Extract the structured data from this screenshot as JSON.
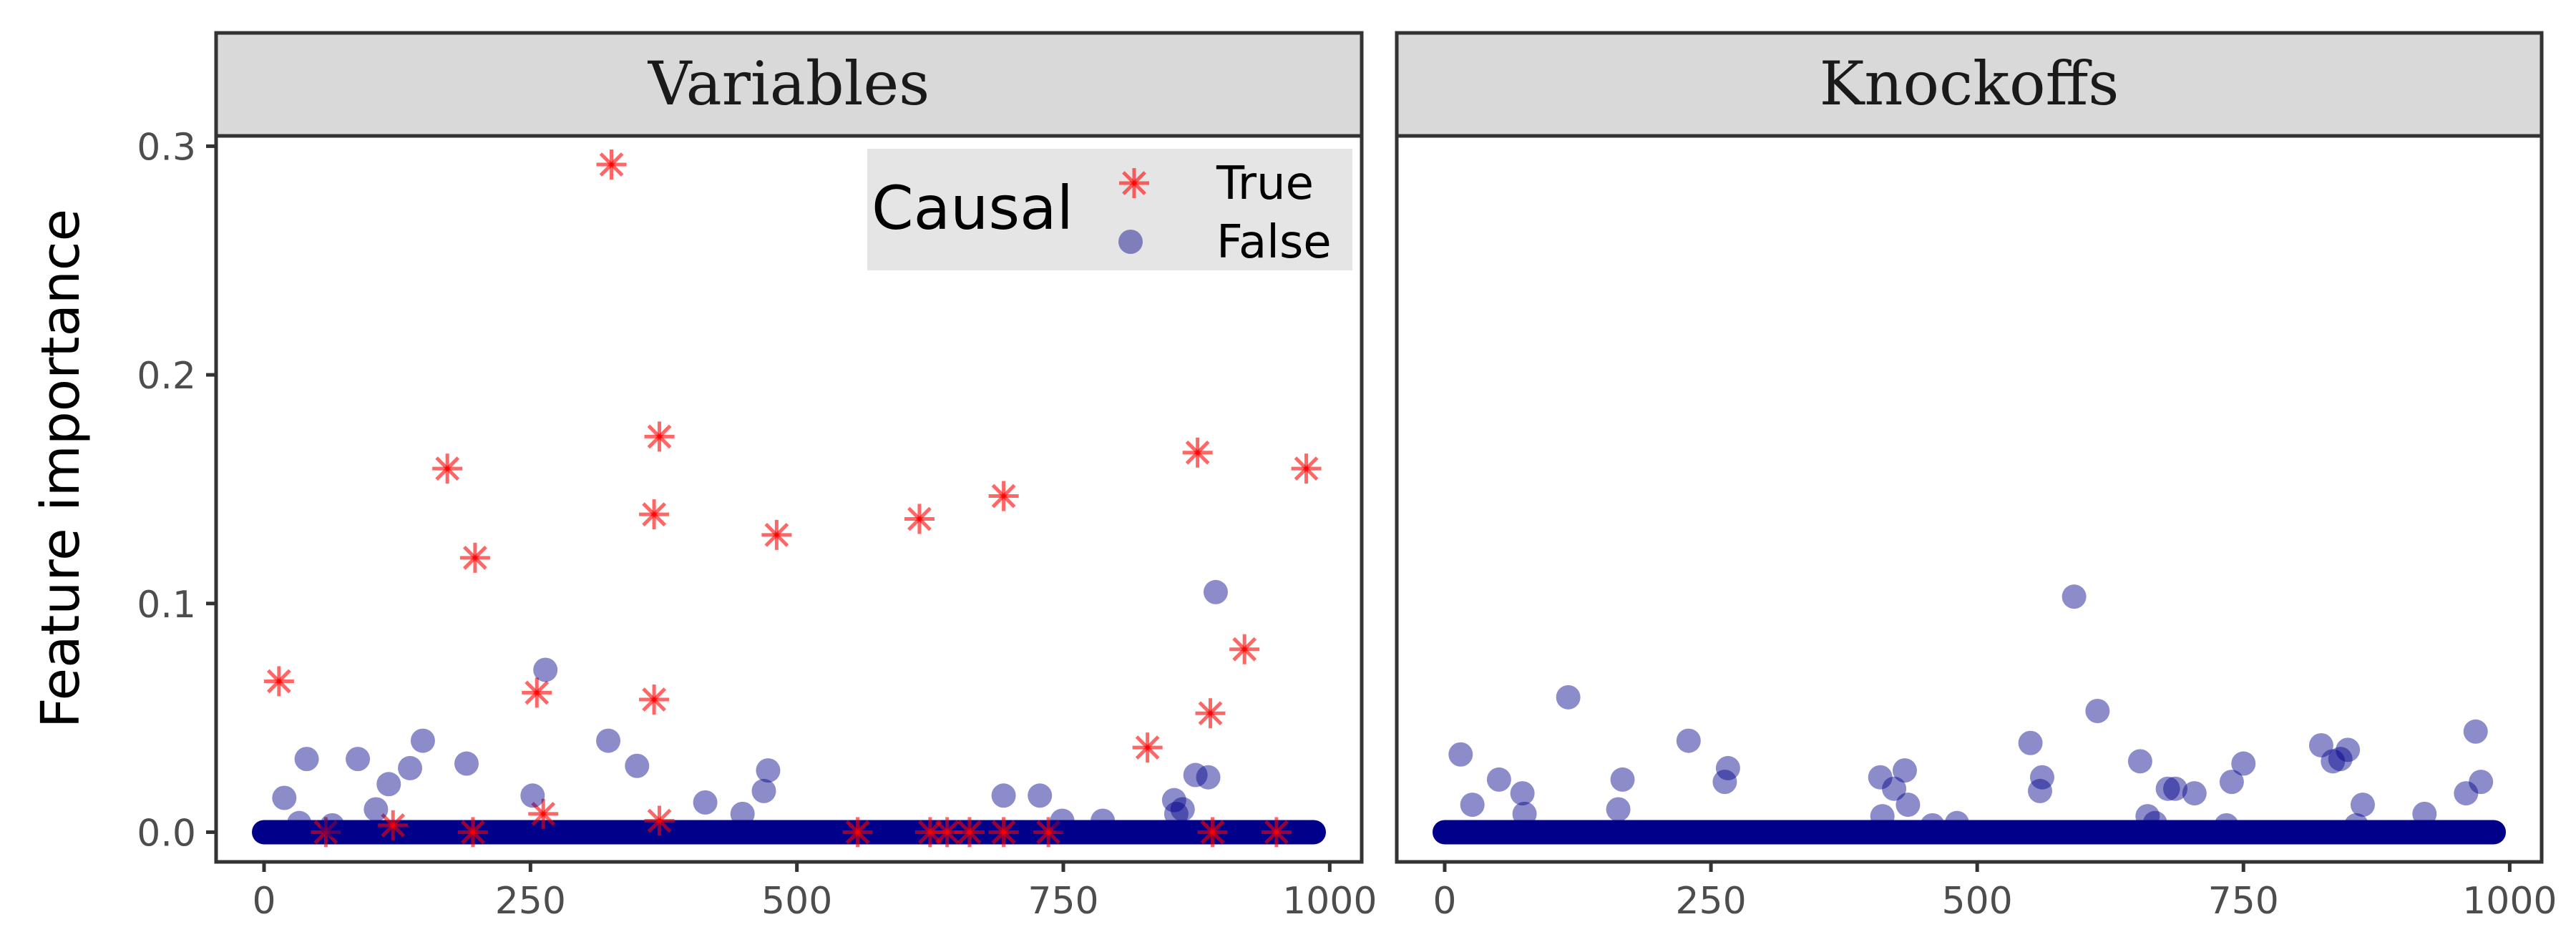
{
  "chart_data": {
    "type": "scatter",
    "ylabel": "Feature importance",
    "xlim": [
      -45,
      1030
    ],
    "ylim": [
      -0.013,
      0.3045
    ],
    "x_ticks": [
      0,
      250,
      500,
      750,
      1000
    ],
    "y_ticks": [
      0.0,
      0.1,
      0.2,
      0.3
    ],
    "x_tick_labels": [
      "0",
      "250",
      "500",
      "750",
      "1000"
    ],
    "y_tick_labels": [
      "0.0",
      "0.1",
      "0.2",
      "0.3"
    ],
    "grid": false,
    "legend": {
      "title": "Causal",
      "placement": "top-right",
      "entries": [
        {
          "label": "True",
          "marker": "asterisk",
          "color": "#ff0000"
        },
        {
          "label": "False",
          "marker": "circle",
          "color": "#00008b"
        }
      ]
    },
    "baseline": {
      "y": 0.0,
      "x_from": 0,
      "x_to": 985,
      "color": "#00008b"
    },
    "panels": [
      {
        "strip_label": "Variables",
        "series": [
          {
            "name": "True",
            "marker": "asterisk",
            "color": "#ff0000",
            "points": [
              [
                14,
                0.066
              ],
              [
                172,
                0.159
              ],
              [
                198,
                0.12
              ],
              [
                256,
                0.061
              ],
              [
                262,
                0.008
              ],
              [
                326,
                0.292
              ],
              [
                366,
                0.139
              ],
              [
                366,
                0.058
              ],
              [
                371,
                0.173
              ],
              [
                371,
                0.005
              ],
              [
                481,
                0.13
              ],
              [
                615,
                0.137
              ],
              [
                694,
                0.147
              ],
              [
                829,
                0.037
              ],
              [
                876,
                0.166
              ],
              [
                888,
                0.052
              ],
              [
                920,
                0.08
              ],
              [
                978,
                0.159
              ],
              [
                58,
                0.0
              ],
              [
                121,
                0.003
              ],
              [
                196,
                0.0
              ],
              [
                557,
                0.0
              ],
              [
                625,
                0.0
              ],
              [
                641,
                0.0
              ],
              [
                662,
                0.0
              ],
              [
                694,
                0.0
              ],
              [
                736,
                0.0
              ],
              [
                890,
                0.0
              ],
              [
                950,
                0.0
              ]
            ]
          },
          {
            "name": "False",
            "marker": "circle",
            "color": "#00008b",
            "points": [
              [
                19,
                0.015
              ],
              [
                33,
                0.004
              ],
              [
                40,
                0.032
              ],
              [
                64,
                0.003
              ],
              [
                88,
                0.032
              ],
              [
                105,
                0.01
              ],
              [
                117,
                0.021
              ],
              [
                137,
                0.028
              ],
              [
                149,
                0.04
              ],
              [
                190,
                0.03
              ],
              [
                252,
                0.016
              ],
              [
                264,
                0.071
              ],
              [
                323,
                0.04
              ],
              [
                350,
                0.029
              ],
              [
                414,
                0.013
              ],
              [
                449,
                0.008
              ],
              [
                469,
                0.018
              ],
              [
                473,
                0.027
              ],
              [
                694,
                0.016
              ],
              [
                728,
                0.016
              ],
              [
                749,
                0.005
              ],
              [
                787,
                0.005
              ],
              [
                854,
                0.014
              ],
              [
                856,
                0.008
              ],
              [
                862,
                0.01
              ],
              [
                874,
                0.025
              ],
              [
                886,
                0.024
              ],
              [
                893,
                0.105
              ]
            ]
          }
        ]
      },
      {
        "strip_label": "Knockoffs",
        "series": [
          {
            "name": "False",
            "marker": "circle",
            "color": "#00008b",
            "points": [
              [
                15,
                0.034
              ],
              [
                26,
                0.012
              ],
              [
                51,
                0.023
              ],
              [
                73,
                0.017
              ],
              [
                75,
                0.008
              ],
              [
                116,
                0.059
              ],
              [
                163,
                0.01
              ],
              [
                167,
                0.023
              ],
              [
                229,
                0.04
              ],
              [
                263,
                0.022
              ],
              [
                266,
                0.028
              ],
              [
                409,
                0.024
              ],
              [
                411,
                0.007
              ],
              [
                422,
                0.019
              ],
              [
                432,
                0.027
              ],
              [
                435,
                0.012
              ],
              [
                458,
                0.003
              ],
              [
                481,
                0.004
              ],
              [
                550,
                0.039
              ],
              [
                559,
                0.018
              ],
              [
                561,
                0.024
              ],
              [
                591,
                0.103
              ],
              [
                613,
                0.053
              ],
              [
                653,
                0.031
              ],
              [
                660,
                0.007
              ],
              [
                667,
                0.004
              ],
              [
                679,
                0.019
              ],
              [
                686,
                0.019
              ],
              [
                704,
                0.017
              ],
              [
                734,
                0.003
              ],
              [
                739,
                0.022
              ],
              [
                750,
                0.03
              ],
              [
                823,
                0.038
              ],
              [
                834,
                0.031
              ],
              [
                841,
                0.032
              ],
              [
                848,
                0.036
              ],
              [
                856,
                0.003
              ],
              [
                862,
                0.012
              ],
              [
                920,
                0.008
              ],
              [
                959,
                0.017
              ],
              [
                968,
                0.044
              ],
              [
                973,
                0.022
              ]
            ]
          }
        ]
      }
    ]
  }
}
